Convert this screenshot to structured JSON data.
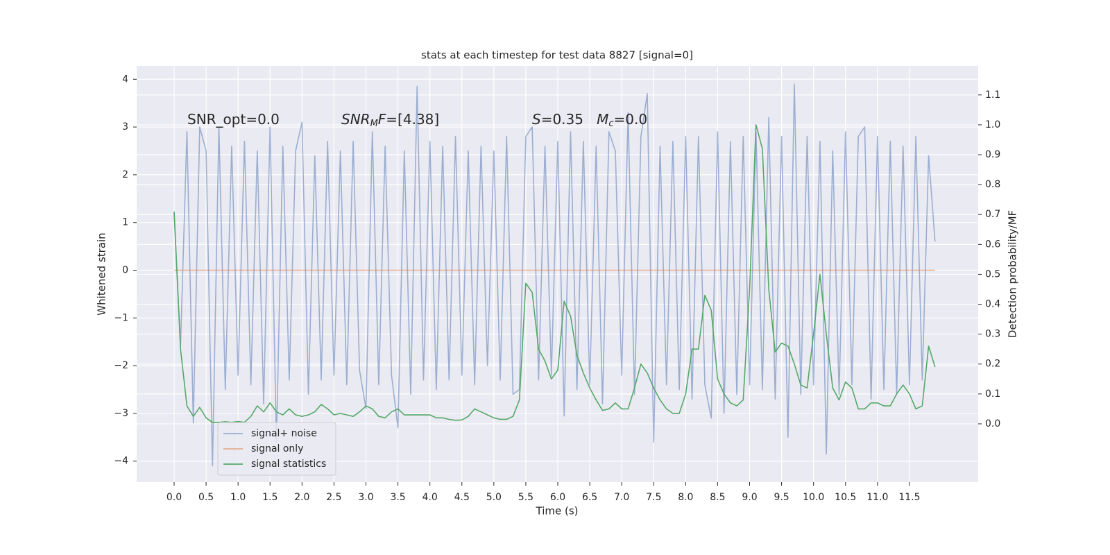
{
  "chart_data": {
    "type": "line",
    "title": "stats at each timestep for test data 8827 [signal=0]",
    "xlabel": "Time (s)",
    "ylabel": "Whitened strain",
    "y2label": "Detection probability/MF",
    "annotations": [
      {
        "parts": [
          {
            "text": "SNR_opt=0.0"
          }
        ]
      },
      {
        "parts": [
          {
            "text": "SNR",
            "italic": true
          },
          {
            "text": "M",
            "italic": true,
            "sub": true
          },
          {
            "text": "F",
            "italic": true
          },
          {
            "text": "=[4.38]"
          }
        ]
      },
      {
        "parts": [
          {
            "text": "S",
            "italic": true
          },
          {
            "text": "=0.35   "
          },
          {
            "text": "M",
            "italic": true
          },
          {
            "text": "c",
            "italic": true,
            "sub": true
          },
          {
            "text": "=0.0"
          }
        ]
      }
    ],
    "x": [
      0,
      0.1,
      0.2,
      0.3,
      0.4,
      0.5,
      0.6,
      0.7,
      0.8,
      0.9,
      1,
      1.1,
      1.2,
      1.3,
      1.4,
      1.5,
      1.6,
      1.7,
      1.8,
      1.9,
      2,
      2.1,
      2.2,
      2.3,
      2.4,
      2.5,
      2.6,
      2.7,
      2.8,
      2.9,
      3,
      3.1,
      3.2,
      3.3,
      3.4,
      3.5,
      3.6,
      3.7,
      3.8,
      3.9,
      4,
      4.1,
      4.2,
      4.3,
      4.4,
      4.5,
      4.6,
      4.7,
      4.8,
      4.9,
      5,
      5.1,
      5.2,
      5.3,
      5.4,
      5.5,
      5.6,
      5.7,
      5.8,
      5.9,
      6,
      6.1,
      6.2,
      6.3,
      6.4,
      6.5,
      6.6,
      6.7,
      6.8,
      6.9,
      7,
      7.1,
      7.2,
      7.3,
      7.4,
      7.5,
      7.6,
      7.7,
      7.8,
      7.9,
      8,
      8.1,
      8.2,
      8.3,
      8.4,
      8.5,
      8.6,
      8.7,
      8.8,
      8.9,
      9,
      9.1,
      9.2,
      9.3,
      9.4,
      9.5,
      9.6,
      9.7,
      9.8,
      9.9,
      10,
      10.1,
      10.2,
      10.3,
      10.4,
      10.5,
      10.6,
      10.7,
      10.8,
      10.9,
      11,
      11.1,
      11.2,
      11.3,
      11.4,
      11.5,
      11.6,
      11.7,
      11.8,
      11.9
    ],
    "series": [
      {
        "name": "signal+ noise",
        "color": "#4c72b0",
        "opacity": 0.5,
        "values": [
          1.2,
          -1.6,
          2.9,
          -3.2,
          3.0,
          2.5,
          -4.1,
          3.0,
          -2.5,
          2.6,
          -2.2,
          2.7,
          -2.4,
          2.5,
          -2.8,
          3.0,
          -3.6,
          2.6,
          -2.3,
          2.5,
          3.1,
          -2.6,
          2.4,
          -2.3,
          2.7,
          -2.2,
          2.5,
          -2.4,
          2.7,
          -2.1,
          -2.9,
          2.9,
          -2.4,
          2.6,
          -2.2,
          -3.3,
          2.5,
          -2.6,
          3.85,
          -2.3,
          2.7,
          -2.5,
          2.6,
          -2.3,
          2.8,
          -2.2,
          2.5,
          -2.4,
          2.6,
          -2.0,
          2.5,
          -2.3,
          2.8,
          -2.6,
          -2.5,
          2.8,
          3.0,
          -2.3,
          2.6,
          -2.2,
          2.7,
          -3.05,
          2.9,
          -2.5,
          2.7,
          -2.4,
          2.6,
          -2.8,
          2.9,
          2.5,
          -2.2,
          3.3,
          -2.6,
          2.8,
          3.7,
          -3.6,
          2.6,
          -2.4,
          2.7,
          -2.5,
          2.8,
          -2.7,
          2.8,
          -2.4,
          -3.1,
          2.9,
          -3.0,
          2.7,
          -2.6,
          2.8,
          -2.4,
          2.9,
          -2.5,
          3.2,
          -2.7,
          2.8,
          -3.5,
          3.9,
          -2.6,
          2.8,
          -2.4,
          2.7,
          -3.85,
          2.5,
          -2.6,
          2.9,
          -2.4,
          2.8,
          3.0,
          -2.7,
          2.8,
          -2.5,
          2.7,
          -2.6,
          2.6,
          -2.4,
          2.8,
          -2.3,
          2.4,
          0.6
        ]
      },
      {
        "name": "signal only",
        "color": "#dd8452",
        "opacity": 0.6,
        "values": [
          0,
          0,
          0,
          0,
          0,
          0,
          0,
          0,
          0,
          0,
          0,
          0,
          0,
          0,
          0,
          0,
          0,
          0,
          0,
          0,
          0,
          0,
          0,
          0,
          0,
          0,
          0,
          0,
          0,
          0,
          0,
          0,
          0,
          0,
          0,
          0,
          0,
          0,
          0,
          0,
          0,
          0,
          0,
          0,
          0,
          0,
          0,
          0,
          0,
          0,
          0,
          0,
          0,
          0,
          0,
          0,
          0,
          0,
          0,
          0,
          0,
          0,
          0,
          0,
          0,
          0,
          0,
          0,
          0,
          0,
          0,
          0,
          0,
          0,
          0,
          0,
          0,
          0,
          0,
          0,
          0,
          0,
          0,
          0,
          0,
          0,
          0,
          0,
          0,
          0,
          0,
          0,
          0,
          0,
          0,
          0,
          0,
          0,
          0,
          0,
          0,
          0,
          0,
          0,
          0,
          0,
          0,
          0,
          0,
          0,
          0,
          0,
          0,
          0,
          0,
          0,
          0,
          0,
          0,
          0
        ]
      },
      {
        "name": "signal statistics",
        "color": "#55a868",
        "opacity": 1,
        "axis": "y2",
        "values": [
          0.71,
          0.25,
          0.06,
          0.025,
          0.055,
          0.02,
          0.005,
          0.005,
          0.007,
          0.005,
          0.008,
          0.005,
          0.025,
          0.06,
          0.04,
          0.07,
          0.04,
          0.03,
          0.05,
          0.03,
          0.025,
          0.03,
          0.04,
          0.065,
          0.05,
          0.03,
          0.035,
          0.03,
          0.025,
          0.04,
          0.06,
          0.05,
          0.025,
          0.02,
          0.04,
          0.05,
          0.03,
          0.03,
          0.03,
          0.03,
          0.03,
          0.02,
          0.02,
          0.015,
          0.012,
          0.013,
          0.025,
          0.05,
          0.04,
          0.03,
          0.02,
          0.015,
          0.015,
          0.025,
          0.08,
          0.47,
          0.44,
          0.25,
          0.21,
          0.15,
          0.18,
          0.41,
          0.36,
          0.23,
          0.17,
          0.12,
          0.08,
          0.045,
          0.05,
          0.07,
          0.05,
          0.05,
          0.12,
          0.2,
          0.17,
          0.12,
          0.08,
          0.05,
          0.035,
          0.035,
          0.1,
          0.25,
          0.25,
          0.43,
          0.38,
          0.15,
          0.1,
          0.07,
          0.06,
          0.08,
          0.45,
          1.0,
          0.92,
          0.45,
          0.24,
          0.27,
          0.26,
          0.2,
          0.13,
          0.12,
          0.3,
          0.5,
          0.3,
          0.12,
          0.08,
          0.14,
          0.12,
          0.05,
          0.05,
          0.07,
          0.07,
          0.06,
          0.06,
          0.1,
          0.13,
          0.1,
          0.05,
          0.06,
          0.26,
          0.19
        ]
      }
    ],
    "xlim": [
      -0.586,
      12.575
    ],
    "xticks": [
      {
        "value": 0,
        "label": "0.0"
      },
      0.5,
      {
        "value": 1,
        "label": "1.0"
      },
      1.5,
      {
        "value": 2,
        "label": "2.0"
      },
      2.5,
      {
        "value": 3,
        "label": "3.0"
      },
      3.5,
      {
        "value": 4,
        "label": "4.0"
      },
      4.5,
      {
        "value": 5,
        "label": "5.0"
      },
      5.5,
      {
        "value": 6,
        "label": "6.0"
      },
      6.5,
      {
        "value": 7,
        "label": "7.0"
      },
      7.5,
      {
        "value": 8,
        "label": "8.0"
      },
      8.5,
      {
        "value": 9,
        "label": "9.0"
      },
      9.5,
      {
        "value": 10,
        "label": "10.0"
      },
      10.5,
      {
        "value": 11,
        "label": "11.0"
      },
      11.5
    ],
    "ylim": [
      -4.44,
      4.28
    ],
    "yticks": [
      {
        "value": -4,
        "label": "−4"
      },
      {
        "value": -3,
        "label": "−3"
      },
      {
        "value": -2,
        "label": "−2"
      },
      {
        "value": -1,
        "label": "−1"
      },
      0,
      1,
      2,
      3,
      4
    ],
    "y2lim": [
      -0.195,
      1.197
    ],
    "y2ticks": [
      {
        "value": 0,
        "label": "0.0"
      },
      0.1,
      0.2,
      0.3,
      0.4,
      0.5,
      0.6,
      0.7,
      0.8,
      0.9,
      {
        "value": 1,
        "label": "1.0"
      },
      1.1
    ],
    "grid": true,
    "legend": "lower left"
  }
}
